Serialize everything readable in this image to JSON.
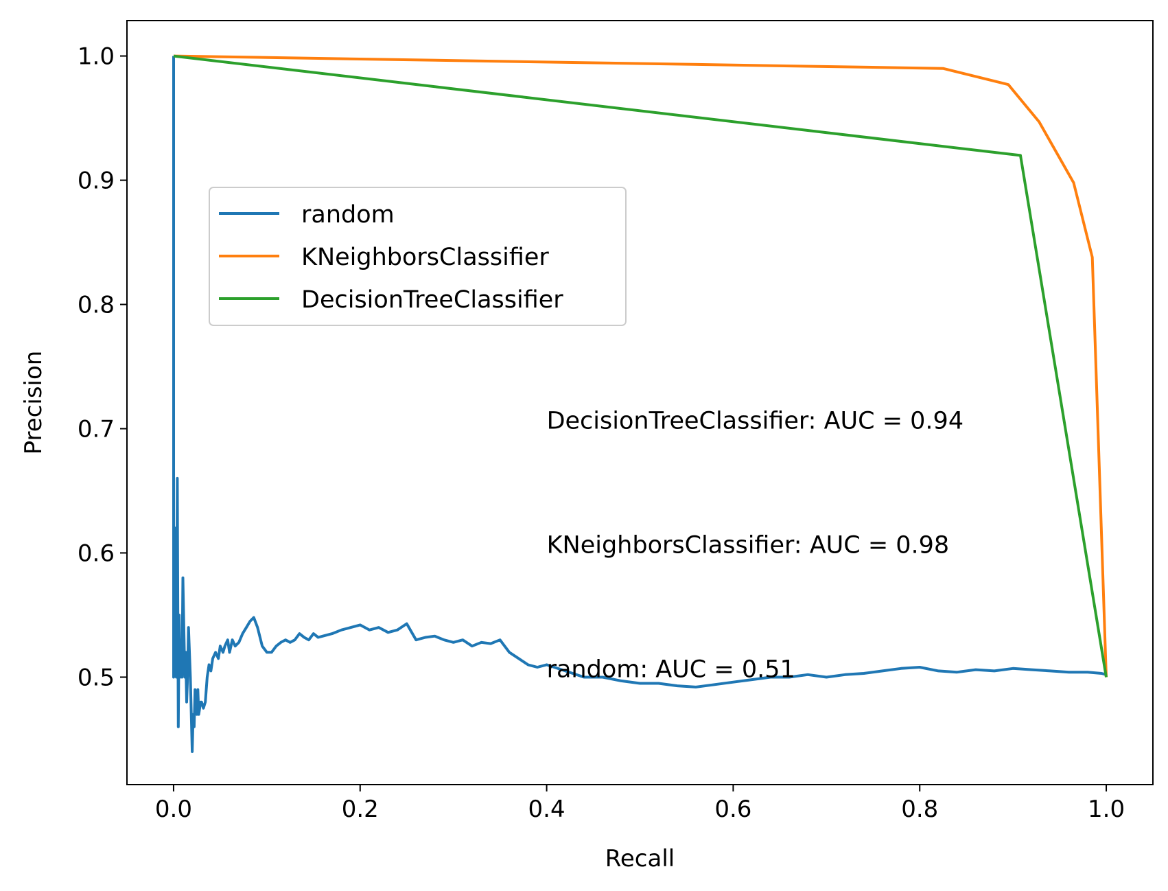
{
  "chart_data": {
    "type": "line",
    "xlabel": "Recall",
    "ylabel": "Precision",
    "xlim": [
      -0.05,
      1.05
    ],
    "ylim": [
      0.4135,
      1.0285
    ],
    "x_ticks": [
      "0.0",
      "0.2",
      "0.4",
      "0.6",
      "0.8",
      "1.0"
    ],
    "x_tick_values": [
      0.0,
      0.2,
      0.4,
      0.6,
      0.8,
      1.0
    ],
    "y_ticks": [
      "0.5",
      "0.6",
      "0.7",
      "0.8",
      "0.9",
      "1.0"
    ],
    "y_tick_values": [
      0.5,
      0.6,
      0.7,
      0.8,
      0.9,
      1.0
    ],
    "grid": false,
    "legend_position": "upper-left",
    "series": [
      {
        "name": "random",
        "color": "#1f77b4",
        "x": [
          0.0,
          0.0,
          0.002,
          0.003,
          0.004,
          0.005,
          0.006,
          0.007,
          0.008,
          0.009,
          0.01,
          0.012,
          0.013,
          0.014,
          0.015,
          0.016,
          0.018,
          0.02,
          0.021,
          0.022,
          0.023,
          0.025,
          0.026,
          0.027,
          0.029,
          0.03,
          0.032,
          0.034,
          0.036,
          0.038,
          0.04,
          0.042,
          0.045,
          0.048,
          0.05,
          0.053,
          0.055,
          0.058,
          0.06,
          0.063,
          0.066,
          0.07,
          0.074,
          0.078,
          0.082,
          0.086,
          0.09,
          0.095,
          0.1,
          0.105,
          0.11,
          0.115,
          0.12,
          0.125,
          0.13,
          0.135,
          0.14,
          0.145,
          0.15,
          0.155,
          0.16,
          0.17,
          0.18,
          0.19,
          0.2,
          0.21,
          0.22,
          0.23,
          0.24,
          0.25,
          0.26,
          0.27,
          0.28,
          0.29,
          0.3,
          0.31,
          0.32,
          0.33,
          0.34,
          0.35,
          0.36,
          0.37,
          0.38,
          0.39,
          0.4,
          0.42,
          0.44,
          0.46,
          0.48,
          0.5,
          0.52,
          0.54,
          0.56,
          0.58,
          0.6,
          0.62,
          0.64,
          0.66,
          0.68,
          0.7,
          0.72,
          0.74,
          0.76,
          0.78,
          0.8,
          0.82,
          0.84,
          0.86,
          0.88,
          0.9,
          0.92,
          0.94,
          0.96,
          0.98,
          0.995,
          1.0
        ],
        "y": [
          1.0,
          0.5,
          0.62,
          0.5,
          0.66,
          0.46,
          0.55,
          0.5,
          0.53,
          0.5,
          0.58,
          0.5,
          0.52,
          0.48,
          0.5,
          0.54,
          0.5,
          0.44,
          0.47,
          0.46,
          0.49,
          0.47,
          0.49,
          0.47,
          0.48,
          0.48,
          0.475,
          0.48,
          0.5,
          0.51,
          0.505,
          0.515,
          0.52,
          0.515,
          0.525,
          0.52,
          0.525,
          0.53,
          0.52,
          0.53,
          0.525,
          0.528,
          0.535,
          0.54,
          0.545,
          0.548,
          0.54,
          0.525,
          0.52,
          0.52,
          0.525,
          0.528,
          0.53,
          0.528,
          0.53,
          0.535,
          0.532,
          0.53,
          0.535,
          0.532,
          0.533,
          0.535,
          0.538,
          0.54,
          0.542,
          0.538,
          0.54,
          0.536,
          0.538,
          0.543,
          0.53,
          0.532,
          0.533,
          0.53,
          0.528,
          0.53,
          0.525,
          0.528,
          0.527,
          0.53,
          0.52,
          0.515,
          0.51,
          0.508,
          0.51,
          0.505,
          0.5,
          0.5,
          0.497,
          0.495,
          0.495,
          0.493,
          0.492,
          0.494,
          0.496,
          0.498,
          0.5,
          0.5,
          0.502,
          0.5,
          0.502,
          0.503,
          0.505,
          0.507,
          0.508,
          0.505,
          0.504,
          0.506,
          0.505,
          0.507,
          0.506,
          0.505,
          0.504,
          0.504,
          0.503,
          0.502
        ]
      },
      {
        "name": "KNeighborsClassifier",
        "color": "#ff7f0e",
        "x": [
          0.0,
          0.825,
          0.895,
          0.928,
          0.965,
          0.985,
          1.0
        ],
        "y": [
          1.0,
          0.99,
          0.977,
          0.947,
          0.898,
          0.838,
          0.5
        ]
      },
      {
        "name": "DecisionTreeClassifier",
        "color": "#2ca02c",
        "x": [
          0.0,
          0.908,
          1.0
        ],
        "y": [
          1.0,
          0.92,
          0.5
        ]
      }
    ],
    "annotations": [
      {
        "text": "DecisionTreeClassifier: AUC = 0.94",
        "x": 0.4,
        "y": 0.7
      },
      {
        "text": "KNeighborsClassifier: AUC = 0.98",
        "x": 0.4,
        "y": 0.6
      },
      {
        "text": "random: AUC = 0.51",
        "x": 0.4,
        "y": 0.5
      }
    ]
  }
}
